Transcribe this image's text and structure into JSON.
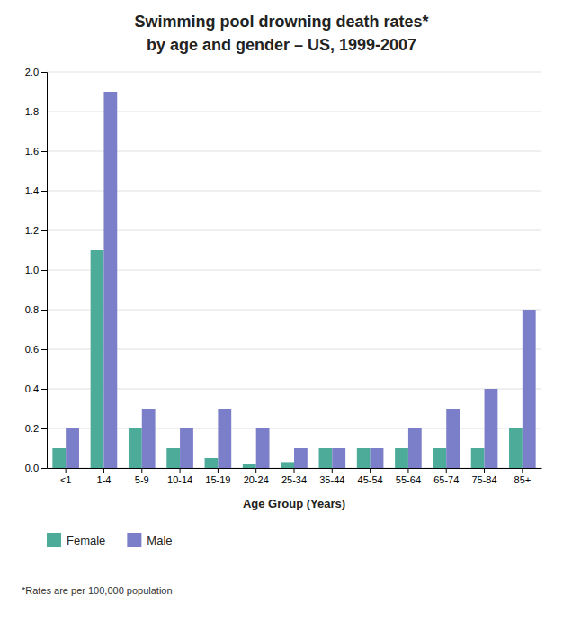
{
  "chart_data": {
    "type": "bar",
    "title": "Swimming pool drowning death rates*",
    "subtitle": "by age and gender – US, 1999-2007",
    "xlabel": "Age Group (Years)",
    "annotations": [
      "*Rates are per 100,000 population"
    ],
    "categories": [
      "<1",
      "1-4",
      "5-9",
      "10-14",
      "15-19",
      "20-24",
      "25-34",
      "35-44",
      "45-54",
      "55-64",
      "65-74",
      "75-84",
      "85+"
    ],
    "series": [
      {
        "name": "Female",
        "color": "#4dab9a",
        "values": [
          0.1,
          1.1,
          0.2,
          0.1,
          0.05,
          0.02,
          0.03,
          0.1,
          0.1,
          0.1,
          0.1,
          0.1,
          0.2
        ]
      },
      {
        "name": "Male",
        "color": "#7b7ec8",
        "values": [
          0.2,
          1.9,
          0.3,
          0.2,
          0.3,
          0.2,
          0.1,
          0.1,
          0.1,
          0.2,
          0.3,
          0.4,
          0.8
        ]
      }
    ],
    "ylim": [
      0,
      2.0
    ],
    "yticks": [
      {
        "value": 0,
        "label": "0.0"
      },
      0.2,
      0.4,
      0.6,
      0.8,
      {
        "value": 1.0,
        "label": "1.0"
      },
      1.2,
      1.4,
      1.6,
      1.8,
      {
        "value": 2.0,
        "label": "2.0"
      }
    ],
    "grid": true,
    "legend": "lower left"
  }
}
